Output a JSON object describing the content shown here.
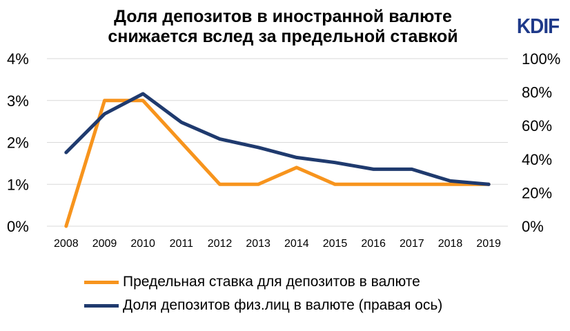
{
  "logo": "KDIF",
  "chart_data": {
    "type": "line",
    "title_line1": "Доля депозитов в иностранной валюте",
    "title_line2": "снижается вслед за предельной ставкой",
    "categories": [
      "2008",
      "2009",
      "2010",
      "2011",
      "2012",
      "2013",
      "2014",
      "2015",
      "2016",
      "2017",
      "2018",
      "2019"
    ],
    "left_axis": {
      "ticks": [
        "0%",
        "1%",
        "2%",
        "3%",
        "4%"
      ],
      "ylim": [
        0,
        4
      ]
    },
    "right_axis": {
      "ticks": [
        "0%",
        "20%",
        "40%",
        "60%",
        "80%",
        "100%"
      ],
      "ylim": [
        0,
        100
      ]
    },
    "grid": true,
    "legend_position": "bottom",
    "series": [
      {
        "name": "Предельная ставка для депозитов в валюте",
        "axis": "left",
        "color": "#f7941d",
        "values": [
          0,
          3,
          3,
          2,
          1,
          1,
          1.4,
          1,
          1,
          1,
          1,
          1
        ]
      },
      {
        "name": "Доля депозитов физ.лиц в валюте (правая ось)",
        "axis": "right",
        "color": "#1f3a6e",
        "values": [
          44,
          67,
          79,
          62,
          52,
          47,
          41,
          38,
          34,
          34,
          27,
          25
        ]
      }
    ]
  }
}
